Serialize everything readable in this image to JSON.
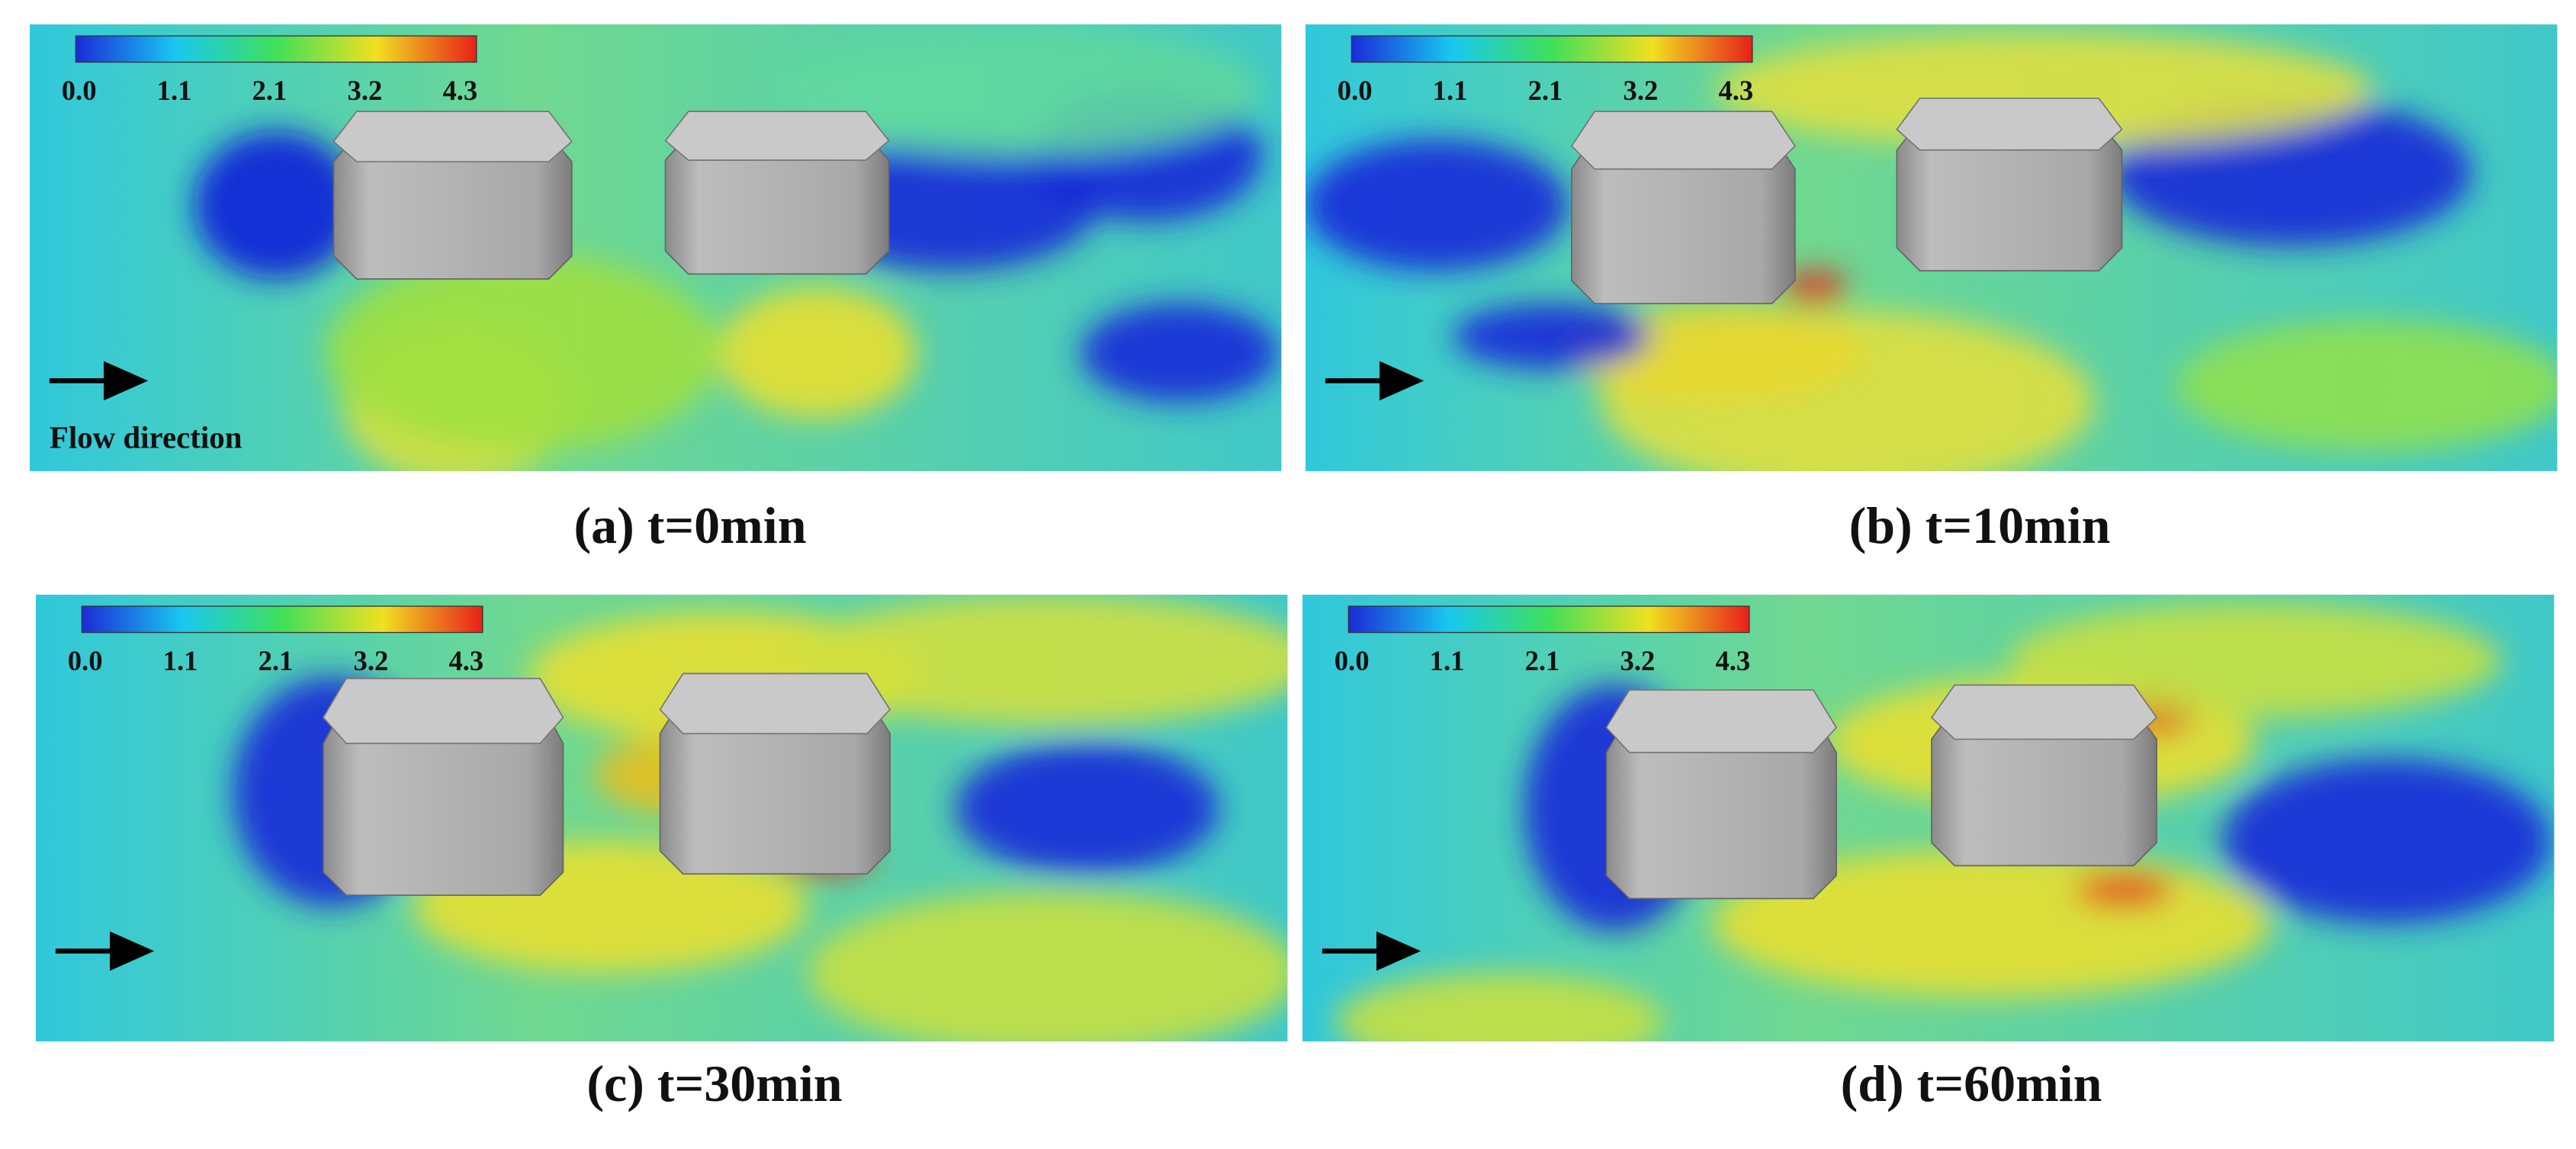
{
  "panels": [
    {
      "caption": "(a) t=0min",
      "colorbar_labels": [
        "0.0",
        "1.1",
        "2.1",
        "3.2",
        "4.3"
      ],
      "annotation": "Flow direction"
    },
    {
      "caption": "(b) t=10min",
      "colorbar_labels": [
        "0.0",
        "1.1",
        "2.1",
        "3.2",
        "4.3"
      ]
    },
    {
      "caption": "(c) t=30min",
      "colorbar_labels": [
        "0.0",
        "1.1",
        "2.1",
        "3.2",
        "4.3"
      ]
    },
    {
      "caption": "(d) t=60min",
      "colorbar_labels": [
        "0.0",
        "1.1",
        "2.1",
        "3.2",
        "4.3"
      ]
    }
  ]
}
